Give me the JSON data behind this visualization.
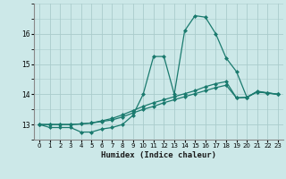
{
  "xlabel": "Humidex (Indice chaleur)",
  "background_color": "#cce8e8",
  "grid_color": "#aacccc",
  "line_color": "#1a7a6e",
  "x_values": [
    0,
    1,
    2,
    3,
    4,
    5,
    6,
    7,
    8,
    9,
    10,
    11,
    12,
    13,
    14,
    15,
    16,
    17,
    18,
    19,
    20,
    21,
    22,
    23
  ],
  "series1": [
    13.0,
    12.9,
    12.9,
    12.9,
    12.75,
    12.75,
    12.85,
    12.9,
    13.0,
    13.3,
    14.0,
    15.25,
    15.25,
    14.0,
    16.1,
    16.6,
    16.55,
    16.0,
    15.2,
    14.75,
    13.9,
    14.1,
    14.05,
    14.0
  ],
  "series2": [
    13.0,
    13.0,
    13.0,
    13.0,
    13.02,
    13.05,
    13.1,
    13.15,
    13.25,
    13.38,
    13.5,
    13.6,
    13.72,
    13.82,
    13.92,
    14.02,
    14.12,
    14.22,
    14.3,
    13.88,
    13.9,
    14.08,
    14.04,
    14.0
  ],
  "series3": [
    13.0,
    13.0,
    13.0,
    13.0,
    13.02,
    13.05,
    13.12,
    13.2,
    13.32,
    13.46,
    13.6,
    13.72,
    13.82,
    13.92,
    14.02,
    14.12,
    14.25,
    14.35,
    14.42,
    13.88,
    13.9,
    14.08,
    14.04,
    14.0
  ],
  "ylim": [
    12.5,
    17.0
  ],
  "yticks": [
    13,
    14,
    15,
    16
  ],
  "xlim": [
    -0.5,
    23.5
  ],
  "xticks": [
    0,
    1,
    2,
    3,
    4,
    5,
    6,
    7,
    8,
    9,
    10,
    11,
    12,
    13,
    14,
    15,
    16,
    17,
    18,
    19,
    20,
    21,
    22,
    23
  ]
}
